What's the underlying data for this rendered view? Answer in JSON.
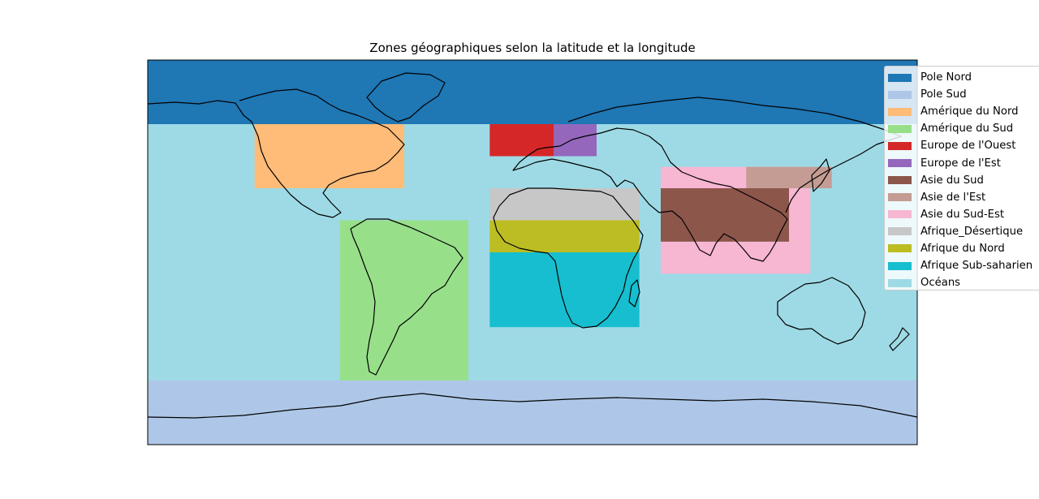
{
  "title": "Zones géographiques selon la latitude et la longitude",
  "map": {
    "extent": {
      "lon": [
        -180,
        180
      ],
      "lat": [
        -90,
        90
      ]
    },
    "zones": [
      {
        "name": "Océans",
        "color": "#9edae5",
        "lon": [
          -180,
          180
        ],
        "lat": [
          -90,
          90
        ]
      },
      {
        "name": "Pole Nord",
        "color": "#1f77b4",
        "lon": [
          -180,
          180
        ],
        "lat": [
          60,
          90
        ]
      },
      {
        "name": "Pole Sud",
        "color": "#aec7e8",
        "lon": [
          -180,
          180
        ],
        "lat": [
          -90,
          -60
        ]
      },
      {
        "name": "Amérique du Nord",
        "color": "#ffbb78",
        "lon": [
          -130,
          -60
        ],
        "lat": [
          30,
          60
        ]
      },
      {
        "name": "Amérique du Sud",
        "color": "#98df8a",
        "lon": [
          -90,
          -30
        ],
        "lat": [
          -60,
          15
        ]
      },
      {
        "name": "Europe de l'Ouest",
        "color": "#d62728",
        "lon": [
          -20,
          10
        ],
        "lat": [
          45,
          60
        ]
      },
      {
        "name": "Europe de l'Est",
        "color": "#9467bd",
        "lon": [
          10,
          30
        ],
        "lat": [
          45,
          60
        ]
      },
      {
        "name": "Asie du Sud-Est",
        "color": "#f7b6d2",
        "lon": [
          60,
          130
        ],
        "lat": [
          -10,
          40
        ]
      },
      {
        "name": "Asie de l'Est",
        "color": "#c49c94",
        "lon": [
          100,
          140
        ],
        "lat": [
          30,
          40
        ]
      },
      {
        "name": "Asie du Sud",
        "color": "#8c564b",
        "lon": [
          60,
          120
        ],
        "lat": [
          5,
          30
        ]
      },
      {
        "name": "Afrique_Désertique",
        "color": "#c7c7c7",
        "lon": [
          -20,
          50
        ],
        "lat": [
          15,
          30
        ]
      },
      {
        "name": "Afrique du Nord",
        "color": "#bcbd22",
        "lon": [
          -20,
          50
        ],
        "lat": [
          0,
          15
        ]
      },
      {
        "name": "Afrique Sub-saharien",
        "color": "#17becf",
        "lon": [
          -20,
          50
        ],
        "lat": [
          -35,
          0
        ]
      }
    ]
  },
  "legend": {
    "placement": "upper-right-outside",
    "items": [
      {
        "label": "Pole Nord",
        "color": "#1f77b4"
      },
      {
        "label": "Pole Sud",
        "color": "#aec7e8"
      },
      {
        "label": "Amérique du Nord",
        "color": "#ffbb78"
      },
      {
        "label": "Amérique du Sud",
        "color": "#98df8a"
      },
      {
        "label": "Europe de l'Ouest",
        "color": "#d62728"
      },
      {
        "label": "Europe de l'Est",
        "color": "#9467bd"
      },
      {
        "label": "Asie du Sud",
        "color": "#8c564b"
      },
      {
        "label": "Asie de l'Est",
        "color": "#c49c94"
      },
      {
        "label": "Asie du Sud-Est",
        "color": "#f7b6d2"
      },
      {
        "label": "Afrique_Désertique",
        "color": "#c7c7c7"
      },
      {
        "label": "Afrique du Nord",
        "color": "#bcbd22"
      },
      {
        "label": "Afrique Sub-saharien",
        "color": "#17becf"
      },
      {
        "label": "Océans",
        "color": "#9edae5"
      }
    ]
  }
}
